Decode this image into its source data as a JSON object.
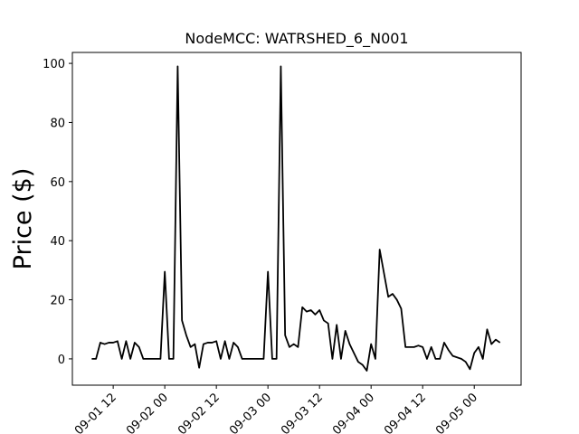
{
  "chart_data": {
    "type": "line",
    "title": "NodeMCC: WATRSHED_6_N001",
    "y_label": "Price ($)",
    "x": [
      7,
      8,
      9,
      10,
      11,
      12,
      13,
      14,
      15,
      16,
      17,
      18,
      19,
      20,
      21,
      22,
      23,
      24,
      25,
      26,
      27,
      28,
      29,
      30,
      31,
      32,
      33,
      34,
      35,
      36,
      37,
      38,
      39,
      40,
      41,
      42,
      43,
      44,
      45,
      46,
      47,
      48,
      49,
      50,
      51,
      52,
      53,
      54,
      55,
      56,
      57,
      58,
      59,
      60,
      61,
      62,
      63,
      64,
      65,
      66,
      67,
      68,
      69,
      70,
      71,
      72,
      73,
      74,
      75,
      76,
      77,
      78,
      79,
      80,
      81,
      82,
      83,
      84,
      85,
      86,
      87,
      88,
      89,
      90,
      91,
      92,
      93,
      94,
      95,
      96,
      97,
      98,
      99,
      100,
      101,
      102
    ],
    "series": [
      {
        "name": "Price",
        "color": "#000000",
        "values": [
          0,
          0,
          5.5,
          5,
          5.5,
          5.5,
          6,
          0,
          6,
          0,
          5.5,
          4,
          0,
          0,
          0,
          0,
          0,
          29.5,
          0,
          0,
          99,
          13,
          8,
          4,
          5,
          -3,
          5,
          5.5,
          5.5,
          6,
          0,
          6,
          0,
          5.5,
          4,
          0,
          0,
          0,
          0,
          0,
          0,
          29.5,
          0,
          0,
          99,
          8,
          4,
          5,
          4,
          17.5,
          16,
          16.5,
          15,
          16.5,
          13,
          12,
          0,
          11.5,
          0,
          9.5,
          5,
          2,
          -1,
          -2,
          -4,
          5,
          0,
          37,
          29,
          21,
          22,
          20,
          17,
          4,
          4,
          4,
          4.5,
          4,
          0,
          4,
          0,
          0,
          5.5,
          3,
          1,
          0.5,
          0,
          -1,
          -3.5,
          2,
          4,
          0,
          10,
          5,
          6.5,
          5.5
        ]
      }
    ],
    "xlim": [
      2.5,
      106.9
    ],
    "xticks": [
      {
        "value": 12,
        "label": "09-01 12"
      },
      {
        "value": 24,
        "label": "09-02 00"
      },
      {
        "value": 36,
        "label": "09-02 12"
      },
      {
        "value": 48,
        "label": "09-03 00"
      },
      {
        "value": 60,
        "label": "09-03 12"
      },
      {
        "value": 72,
        "label": "09-04 00"
      },
      {
        "value": 84,
        "label": "09-04 12"
      },
      {
        "value": 96,
        "label": "09-05 00"
      }
    ],
    "ylim": [
      -8.9,
      103.7
    ],
    "yticks": [
      0,
      20,
      40,
      60,
      80,
      100
    ],
    "grid": false
  }
}
